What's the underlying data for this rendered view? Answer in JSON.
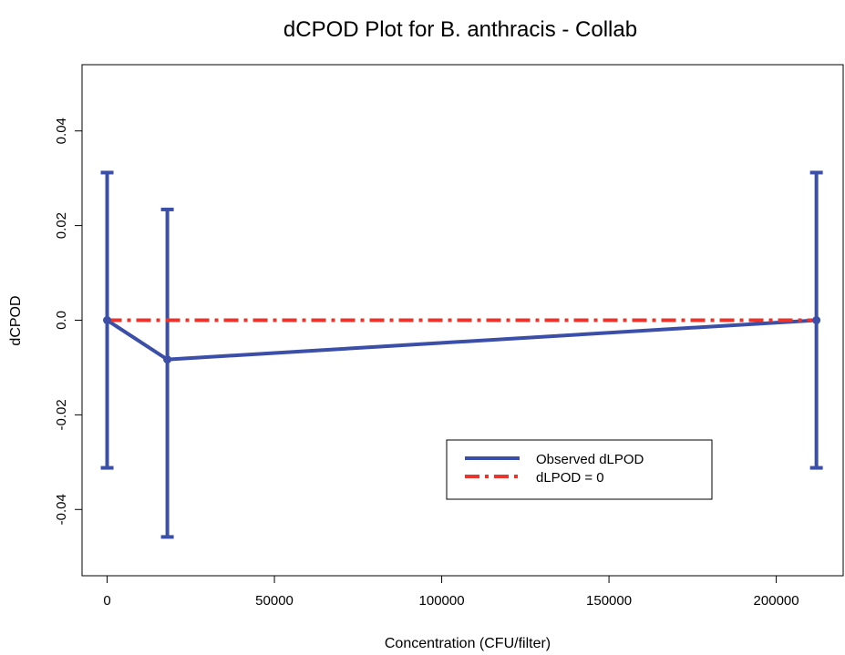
{
  "chart_data": {
    "type": "line",
    "title": "dCPOD Plot for B. anthracis - Collab",
    "xlabel": "Concentration (CFU/filter)",
    "ylabel": "dCPOD",
    "xlim": [
      -7500,
      220000
    ],
    "ylim": [
      -0.054,
      0.054
    ],
    "x_ticks": [
      0,
      50000,
      100000,
      150000,
      200000
    ],
    "y_ticks": [
      -0.04,
      -0.02,
      0.0,
      0.02,
      0.04
    ],
    "x_tick_labels": [
      "0",
      "50000",
      "100000",
      "150000",
      "200000"
    ],
    "y_tick_labels": [
      "-0.04",
      "-0.02",
      "0.0",
      "0.02",
      "0.04"
    ],
    "grid": false,
    "legend_position": "bottom-right",
    "series": [
      {
        "name": "Observed dLPOD",
        "color": "#3b4fa8",
        "style": "solid",
        "x": [
          0,
          18000,
          212000
        ],
        "y": [
          0.0,
          -0.0083,
          0.0
        ],
        "lower": [
          -0.0312,
          -0.0458,
          -0.0312
        ],
        "upper": [
          0.0312,
          0.0234,
          0.0312
        ]
      },
      {
        "name": "dLPOD = 0",
        "color": "#e8352e",
        "style": "dashdot",
        "x": [
          0,
          212000
        ],
        "y": [
          0.0,
          0.0
        ]
      }
    ]
  }
}
